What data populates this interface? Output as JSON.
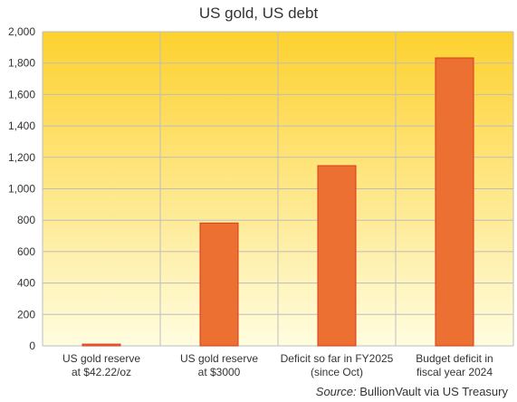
{
  "chart_data": {
    "type": "bar",
    "title": "US gold, US debt",
    "categories": [
      [
        "US gold reserve",
        "at $42.22/oz"
      ],
      [
        "US gold reserve",
        "at $3000"
      ],
      [
        "Deficit so far in FY2025",
        "(since Oct)"
      ],
      [
        "Budget deficit in",
        "fiscal year 2024"
      ]
    ],
    "values": [
      11,
      782,
      1147,
      1833
    ],
    "ylim": [
      0,
      2000
    ],
    "yticks": [
      0,
      200,
      400,
      600,
      800,
      1000,
      1200,
      1400,
      1600,
      1800,
      2000
    ],
    "ytick_labels": [
      "0",
      "200",
      "400",
      "600",
      "800",
      "1,000",
      "1,200",
      "1,400",
      "1,600",
      "1,800",
      "2,000"
    ],
    "grid": true,
    "legend": "none",
    "colors": {
      "bar_fill": "#ec7032",
      "bar_stroke": "#d63a1a",
      "background_top": "#fdd12e",
      "background_bottom": "#fffde0",
      "grid": "#bdbdbd"
    }
  },
  "source": {
    "prefix": "Source:",
    "text": "BullionVault via US Treasury"
  }
}
